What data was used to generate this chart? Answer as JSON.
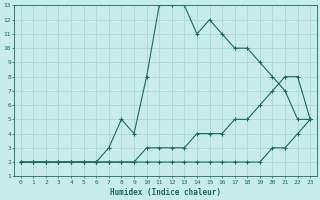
{
  "xlabel": "Humidex (Indice chaleur)",
  "xlim": [
    -0.5,
    23.5
  ],
  "ylim": [
    1,
    13
  ],
  "xticks": [
    0,
    1,
    2,
    3,
    4,
    5,
    6,
    7,
    8,
    9,
    10,
    11,
    12,
    13,
    14,
    15,
    16,
    17,
    18,
    19,
    20,
    21,
    22,
    23
  ],
  "yticks": [
    1,
    2,
    3,
    4,
    5,
    6,
    7,
    8,
    9,
    10,
    11,
    12,
    13
  ],
  "bg_color": "#c8ede8",
  "line_color": "#1a6b5e",
  "grid_color": "#b0d8d2",
  "line1_x": [
    0,
    1,
    2,
    3,
    4,
    5,
    6,
    7,
    8,
    9,
    10,
    11,
    12,
    13,
    14,
    15,
    16,
    17,
    18,
    19,
    20,
    21,
    22,
    23
  ],
  "line1_y": [
    2,
    2,
    2,
    2,
    2,
    2,
    2,
    2,
    2,
    2,
    2,
    2,
    2,
    2,
    2,
    2,
    2,
    2,
    2,
    2,
    3,
    3,
    4,
    5
  ],
  "line2_x": [
    0,
    1,
    2,
    3,
    4,
    5,
    6,
    7,
    8,
    9,
    10,
    11,
    12,
    13,
    14,
    15,
    16,
    17,
    18,
    19,
    20,
    21,
    22,
    23
  ],
  "line2_y": [
    2,
    2,
    2,
    2,
    2,
    2,
    2,
    2,
    2,
    2,
    3,
    3,
    3,
    3,
    4,
    4,
    4,
    5,
    5,
    6,
    7,
    8,
    8,
    5
  ],
  "line3_x": [
    0,
    1,
    2,
    3,
    4,
    5,
    6,
    7,
    8,
    9,
    10,
    11,
    12,
    13,
    14,
    15,
    16,
    17,
    18,
    19,
    20,
    21,
    22,
    23
  ],
  "line3_y": [
    2,
    2,
    2,
    2,
    2,
    2,
    2,
    3,
    5,
    4,
    8,
    13,
    13,
    13,
    11,
    12,
    11,
    10,
    10,
    9,
    8,
    7,
    5,
    5
  ],
  "marker_size": 3,
  "line_width": 0.8
}
